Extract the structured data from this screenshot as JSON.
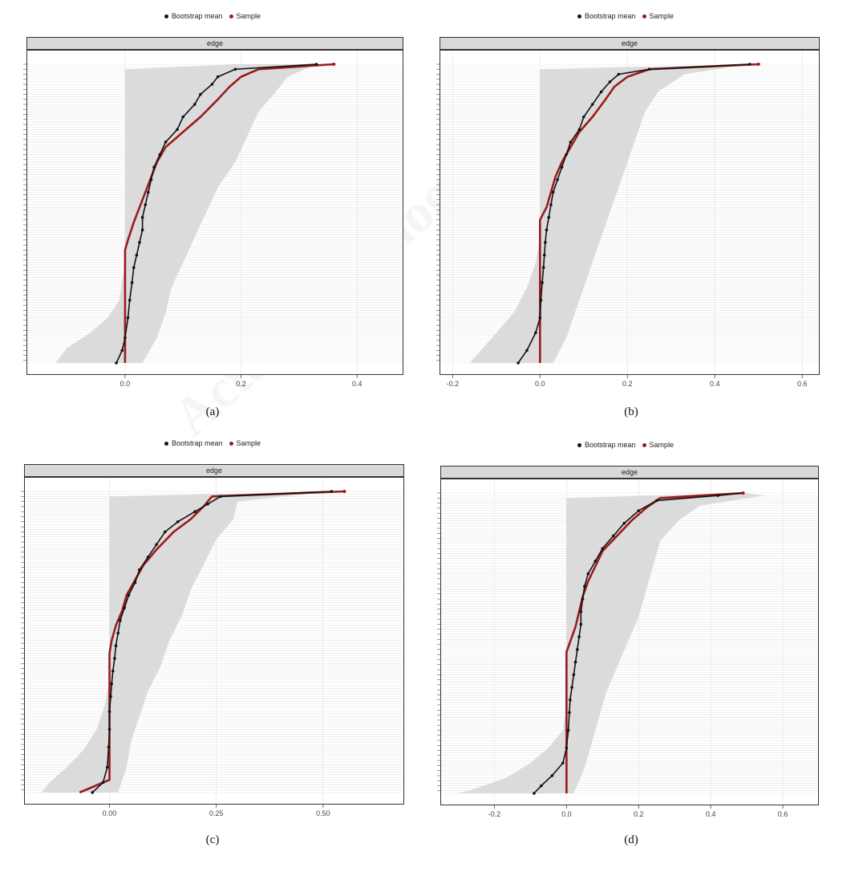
{
  "watermark": "Acta Psychologica Sinica",
  "colors": {
    "bootstrap": "#111111",
    "sample": "#9b1b1b",
    "ci": "#d6d6d6"
  },
  "legend": {
    "bootstrap_label": "Bootstrap mean",
    "sample_label": "Sample"
  },
  "chart_data": [
    {
      "type": "line",
      "panel_label": "(a)",
      "strip": "edge",
      "xlim": [
        -0.17,
        0.48
      ],
      "xticks": [
        0.0,
        0.2,
        0.4
      ],
      "xtick_labels": [
        "0.0",
        "0.2",
        "0.4"
      ],
      "n_edges": 120,
      "legend_position": "top",
      "series": [
        {
          "name": "Bootstrap mean",
          "points": [
            [
              0.33,
              1
            ],
            [
              0.19,
              3
            ],
            [
              0.16,
              6
            ],
            [
              0.15,
              9
            ],
            [
              0.13,
              13
            ],
            [
              0.12,
              17
            ],
            [
              0.1,
              22
            ],
            [
              0.09,
              27
            ],
            [
              0.07,
              32
            ],
            [
              0.06,
              37
            ],
            [
              0.05,
              42
            ],
            [
              0.045,
              47
            ],
            [
              0.04,
              52
            ],
            [
              0.035,
              57
            ],
            [
              0.03,
              62
            ],
            [
              0.03,
              67
            ],
            [
              0.025,
              72
            ],
            [
              0.02,
              77
            ],
            [
              0.015,
              82
            ],
            [
              0.012,
              88
            ],
            [
              0.008,
              95
            ],
            [
              0.005,
              102
            ],
            [
              0.0,
              110
            ],
            [
              -0.005,
              115
            ],
            [
              -0.015,
              120
            ]
          ]
        },
        {
          "name": "Sample",
          "points": [
            [
              0.36,
              1
            ],
            [
              0.23,
              3
            ],
            [
              0.2,
              6
            ],
            [
              0.18,
              10
            ],
            [
              0.16,
              15
            ],
            [
              0.13,
              22
            ],
            [
              0.1,
              28
            ],
            [
              0.07,
              34
            ],
            [
              0.055,
              40
            ],
            [
              0.045,
              46
            ],
            [
              0.035,
              52
            ],
            [
              0.025,
              58
            ],
            [
              0.015,
              64
            ],
            [
              0.005,
              71
            ],
            [
              0.0,
              75
            ],
            [
              0.0,
              85
            ],
            [
              0.0,
              100
            ],
            [
              0.0,
              120
            ]
          ]
        }
      ],
      "ci": {
        "upper": [
          [
            0.33,
            1
          ],
          [
            0.28,
            6
          ],
          [
            0.26,
            12
          ],
          [
            0.23,
            20
          ],
          [
            0.21,
            30
          ],
          [
            0.19,
            40
          ],
          [
            0.16,
            50
          ],
          [
            0.14,
            60
          ],
          [
            0.12,
            70
          ],
          [
            0.1,
            80
          ],
          [
            0.08,
            90
          ],
          [
            0.07,
            100
          ],
          [
            0.055,
            110
          ],
          [
            0.03,
            120
          ]
        ],
        "lower": [
          [
            0.19,
            1
          ],
          [
            0.0,
            3
          ],
          [
            0.0,
            60
          ],
          [
            0.0,
            80
          ],
          [
            -0.01,
            95
          ],
          [
            -0.03,
            102
          ],
          [
            -0.06,
            108
          ],
          [
            -0.1,
            114
          ],
          [
            -0.12,
            120
          ]
        ]
      }
    },
    {
      "type": "line",
      "panel_label": "(b)",
      "strip": "edge",
      "xlim": [
        -0.23,
        0.64
      ],
      "xticks": [
        -0.2,
        0.0,
        0.2,
        0.4,
        0.6
      ],
      "xtick_labels": [
        "-0.2",
        "0.0",
        "0.2",
        "0.4",
        "0.6"
      ],
      "n_edges": 120,
      "legend_position": "top",
      "series": [
        {
          "name": "Bootstrap mean",
          "points": [
            [
              0.48,
              1
            ],
            [
              0.25,
              3
            ],
            [
              0.18,
              5
            ],
            [
              0.16,
              8
            ],
            [
              0.14,
              12
            ],
            [
              0.12,
              17
            ],
            [
              0.1,
              22
            ],
            [
              0.09,
              27
            ],
            [
              0.07,
              32
            ],
            [
              0.06,
              37
            ],
            [
              0.05,
              42
            ],
            [
              0.04,
              47
            ],
            [
              0.03,
              52
            ],
            [
              0.025,
              57
            ],
            [
              0.02,
              62
            ],
            [
              0.015,
              67
            ],
            [
              0.012,
              72
            ],
            [
              0.01,
              77
            ],
            [
              0.008,
              82
            ],
            [
              0.005,
              88
            ],
            [
              0.002,
              95
            ],
            [
              0.0,
              102
            ],
            [
              -0.01,
              108
            ],
            [
              -0.03,
              115
            ],
            [
              -0.05,
              120
            ]
          ]
        },
        {
          "name": "Sample",
          "points": [
            [
              0.5,
              1
            ],
            [
              0.25,
              3
            ],
            [
              0.2,
              6
            ],
            [
              0.17,
              10
            ],
            [
              0.15,
              15
            ],
            [
              0.12,
              22
            ],
            [
              0.09,
              28
            ],
            [
              0.07,
              34
            ],
            [
              0.05,
              40
            ],
            [
              0.035,
              46
            ],
            [
              0.025,
              52
            ],
            [
              0.015,
              58
            ],
            [
              0.0,
              63
            ],
            [
              0.0,
              80
            ],
            [
              0.0,
              100
            ],
            [
              0.0,
              120
            ]
          ]
        }
      ],
      "ci": {
        "upper": [
          [
            0.48,
            1
          ],
          [
            0.33,
            5
          ],
          [
            0.27,
            12
          ],
          [
            0.24,
            20
          ],
          [
            0.22,
            30
          ],
          [
            0.2,
            40
          ],
          [
            0.18,
            50
          ],
          [
            0.16,
            60
          ],
          [
            0.14,
            70
          ],
          [
            0.12,
            80
          ],
          [
            0.1,
            90
          ],
          [
            0.08,
            100
          ],
          [
            0.06,
            110
          ],
          [
            0.03,
            120
          ]
        ],
        "lower": [
          [
            0.48,
            1
          ],
          [
            0.0,
            3
          ],
          [
            0.0,
            70
          ],
          [
            -0.01,
            80
          ],
          [
            -0.03,
            90
          ],
          [
            -0.06,
            100
          ],
          [
            -0.1,
            108
          ],
          [
            -0.13,
            114
          ],
          [
            -0.16,
            120
          ]
        ]
      }
    },
    {
      "type": "line",
      "panel_label": "(c)",
      "strip": "edge",
      "xlim": [
        -0.2,
        0.69
      ],
      "xticks": [
        0.0,
        0.25,
        0.5
      ],
      "xtick_labels": [
        "0.00",
        "0.25",
        "0.50"
      ],
      "n_edges": 120,
      "legend_position": "top",
      "series": [
        {
          "name": "Bootstrap mean",
          "points": [
            [
              0.52,
              1
            ],
            [
              0.26,
              3
            ],
            [
              0.23,
              6
            ],
            [
              0.2,
              9
            ],
            [
              0.16,
              13
            ],
            [
              0.13,
              17
            ],
            [
              0.11,
              22
            ],
            [
              0.09,
              27
            ],
            [
              0.07,
              32
            ],
            [
              0.06,
              37
            ],
            [
              0.045,
              42
            ],
            [
              0.035,
              47
            ],
            [
              0.025,
              52
            ],
            [
              0.02,
              57
            ],
            [
              0.015,
              62
            ],
            [
              0.012,
              67
            ],
            [
              0.008,
              72
            ],
            [
              0.005,
              77
            ],
            [
              0.003,
              82
            ],
            [
              0.0,
              88
            ],
            [
              0.0,
              95
            ],
            [
              -0.002,
              102
            ],
            [
              -0.005,
              110
            ],
            [
              -0.015,
              116
            ],
            [
              -0.04,
              120
            ]
          ]
        },
        {
          "name": "Sample",
          "points": [
            [
              0.55,
              1
            ],
            [
              0.24,
              3
            ],
            [
              0.22,
              7
            ],
            [
              0.19,
              12
            ],
            [
              0.15,
              17
            ],
            [
              0.11,
              24
            ],
            [
              0.08,
              30
            ],
            [
              0.06,
              36
            ],
            [
              0.04,
              42
            ],
            [
              0.03,
              48
            ],
            [
              0.015,
              54
            ],
            [
              0.005,
              60
            ],
            [
              0.0,
              65
            ],
            [
              0.0,
              80
            ],
            [
              0.0,
              100
            ],
            [
              0.0,
              115
            ],
            [
              -0.07,
              120
            ]
          ]
        }
      ],
      "ci": {
        "upper": [
          [
            0.52,
            1
          ],
          [
            0.3,
            5
          ],
          [
            0.29,
            12
          ],
          [
            0.25,
            20
          ],
          [
            0.22,
            30
          ],
          [
            0.19,
            40
          ],
          [
            0.17,
            50
          ],
          [
            0.14,
            60
          ],
          [
            0.12,
            70
          ],
          [
            0.09,
            80
          ],
          [
            0.07,
            90
          ],
          [
            0.05,
            100
          ],
          [
            0.04,
            110
          ],
          [
            0.02,
            120
          ]
        ],
        "lower": [
          [
            0.52,
            1
          ],
          [
            0.0,
            3
          ],
          [
            0.0,
            75
          ],
          [
            -0.01,
            85
          ],
          [
            -0.03,
            95
          ],
          [
            -0.06,
            103
          ],
          [
            -0.1,
            110
          ],
          [
            -0.14,
            116
          ],
          [
            -0.16,
            120
          ]
        ]
      }
    },
    {
      "type": "line",
      "panel_label": "(d)",
      "strip": "edge",
      "xlim": [
        -0.35,
        0.7
      ],
      "xticks": [
        -0.2,
        0.0,
        0.2,
        0.4,
        0.6
      ],
      "xtick_labels": [
        "-0.2",
        "0.0",
        "0.2",
        "0.4",
        "0.6"
      ],
      "n_edges": 120,
      "legend_position": "top",
      "series": [
        {
          "name": "Bootstrap mean",
          "points": [
            [
              0.49,
              1
            ],
            [
              0.42,
              2
            ],
            [
              0.25,
              4
            ],
            [
              0.2,
              8
            ],
            [
              0.16,
              13
            ],
            [
              0.13,
              18
            ],
            [
              0.1,
              23
            ],
            [
              0.08,
              28
            ],
            [
              0.06,
              33
            ],
            [
              0.05,
              38
            ],
            [
              0.045,
              43
            ],
            [
              0.04,
              48
            ],
            [
              0.04,
              53
            ],
            [
              0.035,
              58
            ],
            [
              0.03,
              63
            ],
            [
              0.025,
              68
            ],
            [
              0.02,
              73
            ],
            [
              0.015,
              78
            ],
            [
              0.01,
              83
            ],
            [
              0.008,
              88
            ],
            [
              0.005,
              95
            ],
            [
              0.0,
              102
            ],
            [
              -0.01,
              108
            ],
            [
              -0.04,
              113
            ],
            [
              -0.07,
              117
            ],
            [
              -0.09,
              120
            ]
          ]
        },
        {
          "name": "Sample",
          "points": [
            [
              0.49,
              1
            ],
            [
              0.26,
              3
            ],
            [
              0.22,
              7
            ],
            [
              0.18,
              12
            ],
            [
              0.14,
              18
            ],
            [
              0.1,
              24
            ],
            [
              0.08,
              30
            ],
            [
              0.06,
              36
            ],
            [
              0.045,
              42
            ],
            [
              0.035,
              48
            ],
            [
              0.025,
              54
            ],
            [
              0.01,
              60
            ],
            [
              0.0,
              64
            ],
            [
              0.0,
              80
            ],
            [
              0.0,
              100
            ],
            [
              0.0,
              120
            ]
          ]
        }
      ],
      "ci": {
        "upper": [
          [
            0.49,
            1
          ],
          [
            0.55,
            2
          ],
          [
            0.37,
            6
          ],
          [
            0.31,
            12
          ],
          [
            0.26,
            20
          ],
          [
            0.24,
            30
          ],
          [
            0.22,
            40
          ],
          [
            0.2,
            50
          ],
          [
            0.17,
            60
          ],
          [
            0.14,
            70
          ],
          [
            0.11,
            80
          ],
          [
            0.09,
            90
          ],
          [
            0.07,
            100
          ],
          [
            0.05,
            110
          ],
          [
            0.02,
            120
          ]
        ],
        "lower": [
          [
            0.49,
            1
          ],
          [
            0.0,
            3
          ],
          [
            0.0,
            85
          ],
          [
            -0.01,
            95
          ],
          [
            -0.05,
            102
          ],
          [
            -0.1,
            108
          ],
          [
            -0.17,
            114
          ],
          [
            -0.25,
            118
          ],
          [
            -0.3,
            120
          ]
        ]
      }
    }
  ]
}
